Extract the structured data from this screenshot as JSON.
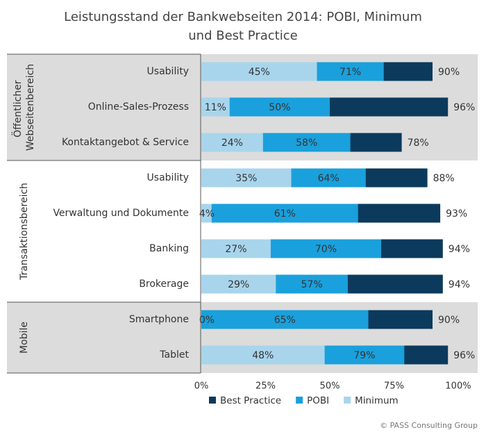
{
  "chart_data": {
    "type": "overlapping-bar",
    "title": [
      "Leistungsstand der Bankwebseiten 2014: POBI, Minimum",
      "und Best Practice"
    ],
    "groups": [
      {
        "name": "Öffentlicher Webseitenbereich",
        "categories": [
          "Usability",
          "Online-Sales-Prozess",
          "Kontaktangebot & Service"
        ],
        "shaded": true
      },
      {
        "name": "Transaktionsbereich",
        "categories": [
          "Usability",
          "Verwaltung und Dokumente",
          "Banking",
          "Brokerage"
        ],
        "shaded": false
      },
      {
        "name": "Mobile",
        "categories": [
          "Smartphone",
          "Tablet"
        ],
        "shaded": true
      }
    ],
    "series": [
      {
        "name": "Best Practice",
        "color": "#0b3a5c",
        "values": [
          90,
          96,
          78,
          88,
          93,
          94,
          94,
          90,
          96
        ],
        "value_labels": [
          "90%",
          "96%",
          "78%",
          "88%",
          "93%",
          "94%",
          "94%",
          "90%",
          "96%"
        ]
      },
      {
        "name": "POBI",
        "color": "#1aa0dc",
        "values": [
          71,
          50,
          58,
          64,
          61,
          70,
          57,
          65,
          79
        ],
        "value_labels": [
          "71%",
          "50%",
          "58%",
          "64%",
          "61%",
          "70%",
          "57%",
          "65%",
          "79%"
        ]
      },
      {
        "name": "Minimum",
        "color": "#a8d5ec",
        "values": [
          45,
          11,
          24,
          35,
          4,
          27,
          29,
          0,
          48
        ],
        "value_labels": [
          "45%",
          "11%",
          "24%",
          "35%",
          "4%",
          "27%",
          "29%",
          "0%",
          "48%"
        ]
      }
    ],
    "xlim": [
      0,
      100
    ],
    "xticks": [
      {
        "value": 0,
        "label": "0%"
      },
      {
        "value": 25,
        "label": "25%"
      },
      {
        "value": 50,
        "label": "50%"
      },
      {
        "value": 75,
        "label": "75%"
      },
      {
        "value": 100,
        "label": "100%"
      }
    ],
    "source": "© PASS Consulting Group"
  }
}
